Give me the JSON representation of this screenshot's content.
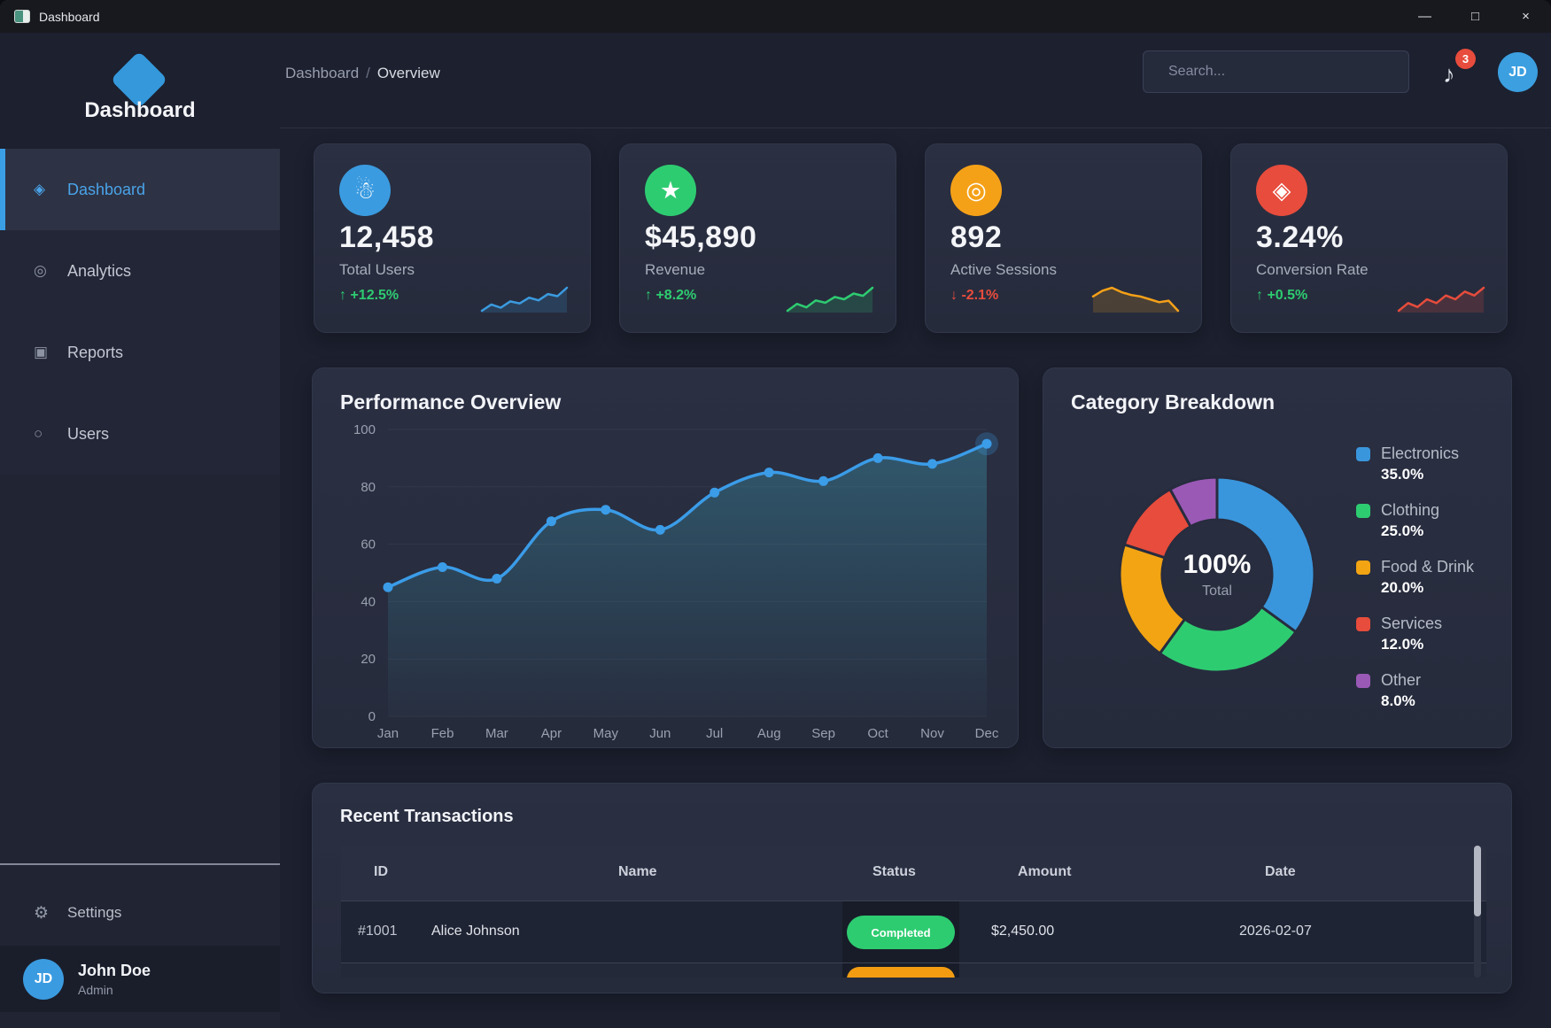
{
  "window": {
    "title": "Dashboard",
    "controls": {
      "minimize": "—",
      "maximize": "□",
      "close": "×"
    }
  },
  "header": {
    "breadcrumb": {
      "section": "Dashboard",
      "separator": "/",
      "current": "Overview"
    },
    "search_placeholder": "Search...",
    "notifications": {
      "glyph": "♪",
      "count": "3"
    },
    "avatar_initials": "JD"
  },
  "sidebar": {
    "logo_text": "Dashboard",
    "nav": [
      {
        "glyph": "◈",
        "label": "Dashboard"
      },
      {
        "glyph": "◎",
        "label": "Analytics"
      },
      {
        "glyph": "▣",
        "label": "Reports"
      },
      {
        "glyph": "○",
        "label": "Users"
      }
    ],
    "settings": {
      "glyph": "⚙",
      "label": "Settings"
    },
    "profile": {
      "initials": "JD",
      "name": "John Doe",
      "role": "Admin"
    }
  },
  "stat_cards": [
    {
      "glyph": "☃",
      "icon_bg": "#3b9be0",
      "value": "12,458",
      "label": "Total Users",
      "trend": "↑ +12.5%",
      "trend_color": "#2ecc71",
      "spark_color": "#3b9be0",
      "spark": [
        30,
        42,
        36,
        48,
        44,
        55,
        50,
        62,
        58,
        74
      ]
    },
    {
      "glyph": "★",
      "icon_bg": "#2ecc71",
      "value": "$45,890",
      "label": "Revenue",
      "trend": "↑ +8.2%",
      "trend_color": "#2ecc71",
      "spark_color": "#2ecc71",
      "spark": [
        38,
        50,
        44,
        56,
        52,
        62,
        58,
        68,
        64,
        78
      ]
    },
    {
      "glyph": "◎",
      "icon_bg": "#f5a118",
      "value": "892",
      "label": "Active Sessions",
      "trend": "↓ -2.1%",
      "trend_color": "#e74c3c",
      "spark_color": "#f5a118",
      "spark": [
        68,
        72,
        74,
        71,
        69,
        68,
        66,
        64,
        65,
        58
      ]
    },
    {
      "glyph": "◈",
      "icon_bg": "#e74c3c",
      "value": "3.24%",
      "label": "Conversion Rate",
      "trend": "↑ +0.5%",
      "trend_color": "#2ecc71",
      "spark_color": "#e74c3c",
      "spark": [
        34,
        46,
        40,
        52,
        46,
        58,
        52,
        64,
        58,
        70
      ]
    }
  ],
  "chart_data": [
    {
      "type": "line",
      "title": "Performance Overview",
      "x": [
        "Jan",
        "Feb",
        "Mar",
        "Apr",
        "May",
        "Jun",
        "Jul",
        "Aug",
        "Sep",
        "Oct",
        "Nov",
        "Dec"
      ],
      "series": [
        {
          "name": "Performance",
          "values": [
            45,
            52,
            48,
            68,
            72,
            65,
            78,
            85,
            82,
            90,
            88,
            95
          ]
        }
      ],
      "ylim": [
        0,
        100
      ],
      "yticks": [
        0,
        20,
        40,
        60,
        80,
        100
      ],
      "line_color": "#3b9ce8",
      "area_color": "#3d9cb4",
      "grid": true,
      "legend_position": "none",
      "highlight_last_point": true
    },
    {
      "type": "donut",
      "title": "Category Breakdown",
      "center_label": "100%",
      "center_sublabel": "Total",
      "legend_position": "right",
      "segments": [
        {
          "label": "Electronics",
          "value": 35.0,
          "pct_label": "35.0%",
          "color": "#3a96dc"
        },
        {
          "label": "Clothing",
          "value": 25.0,
          "pct_label": "25.0%",
          "color": "#2ecc71"
        },
        {
          "label": "Food & Drink",
          "value": 20.0,
          "pct_label": "20.0%",
          "color": "#f2a413"
        },
        {
          "label": "Services",
          "value": 12.0,
          "pct_label": "12.0%",
          "color": "#e74c3c"
        },
        {
          "label": "Other",
          "value": 8.0,
          "pct_label": "8.0%",
          "color": "#9b59b6"
        }
      ]
    }
  ],
  "transactions": {
    "title": "Recent Transactions",
    "columns": [
      "ID",
      "Name",
      "Status",
      "Amount",
      "Date"
    ],
    "rows": [
      {
        "id": "#1001",
        "name": "Alice Johnson",
        "status": "Completed",
        "status_color": "#2ecc71",
        "amount": "$2,450.00",
        "date": "2026-02-07"
      }
    ],
    "partial_row": {
      "status_color": "#f39c12"
    }
  }
}
